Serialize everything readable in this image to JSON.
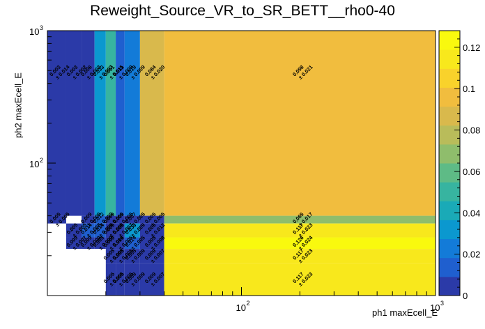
{
  "chart_data": {
    "type": "heatmap",
    "title": "Reweight_Source_VR_to_SR_BETT__rho0-40",
    "xlabel": "ph1 maxEcell_E",
    "ylabel": "ph2 maxEcell_E",
    "x_scale": "log",
    "y_scale": "log",
    "xlim": [
      10,
      1000
    ],
    "ylim": [
      10,
      1000
    ],
    "x_ticks": [
      {
        "value": 100,
        "base": "10",
        "exp": "2"
      },
      {
        "value": 1000,
        "base": "10",
        "exp": "3"
      }
    ],
    "y_ticks": [
      {
        "value": 100,
        "base": "10",
        "exp": "2"
      },
      {
        "value": 1000,
        "base": "10",
        "exp": "3"
      }
    ],
    "x_edges": [
      10,
      12.5,
      15,
      17.5,
      20,
      22.5,
      25,
      30,
      40,
      1000
    ],
    "y_edges": [
      10,
      17.5,
      22.5,
      27.5,
      35,
      40,
      1000
    ],
    "cells": [
      {
        "x": 0,
        "y": 5,
        "value": 0.003,
        "label": "0.003",
        "err": "± 0.014"
      },
      {
        "x": 1,
        "y": 5,
        "value": 0.003,
        "label": "0.003",
        "err": "± 0.002"
      },
      {
        "x": 2,
        "y": 5,
        "value": 0.006,
        "label": "0.006",
        "err": "± 0.003"
      },
      {
        "x": 3,
        "y": 5,
        "value": 0.033,
        "label": "0.033",
        "err": "± 0.007"
      },
      {
        "x": 4,
        "y": 5,
        "value": 0.051,
        "label": "0.051",
        "err": "± 0.015"
      },
      {
        "x": 5,
        "y": 5,
        "value": 0.011,
        "label": "0.011",
        "err": "± 0.009"
      },
      {
        "x": 6,
        "y": 5,
        "value": 0.019,
        "label": "0.019",
        "err": "± 0.009"
      },
      {
        "x": 7,
        "y": 5,
        "value": 0.084,
        "label": "0.084",
        "err": "± 0.020"
      },
      {
        "x": 8,
        "y": 5,
        "value": 0.098,
        "label": "0.098",
        "err": "± 0.021"
      },
      {
        "x": 0,
        "y": 4,
        "value": 0.005,
        "label": "0.005",
        "err": "± 0.005"
      },
      {
        "x": 2,
        "y": 4,
        "value": 0.009,
        "label": "0.009",
        "err": "± 0.009"
      },
      {
        "x": 3,
        "y": 4,
        "value": 0.012,
        "label": "0.012",
        "err": "± 0.033"
      },
      {
        "x": 4,
        "y": 4,
        "value": 0.009,
        "label": "0.009",
        "err": "± 0.009"
      },
      {
        "x": 5,
        "y": 4,
        "value": 0.009,
        "label": "0.009",
        "err": "± 0.005"
      },
      {
        "x": 6,
        "y": 4,
        "value": 0.007,
        "label": "0.007",
        "err": "± 0.005"
      },
      {
        "x": 7,
        "y": 4,
        "value": 0.005,
        "label": "0.005",
        "err": "± 0.005"
      },
      {
        "x": 8,
        "y": 4,
        "value": 0.065,
        "label": "0.065",
        "err": "± 0.017"
      },
      {
        "x": 1,
        "y": 3,
        "value": 0.005,
        "label": "0.005",
        "err": "± 0.005"
      },
      {
        "x": 2,
        "y": 3,
        "value": 0.014,
        "label": "0.014",
        "err": "± 0.008"
      },
      {
        "x": 3,
        "y": 3,
        "value": 0.014,
        "label": "0.014",
        "err": "± 0.009"
      },
      {
        "x": 4,
        "y": 3,
        "value": 0.009,
        "label": "0.009",
        "err": "± 0.009"
      },
      {
        "x": 5,
        "y": 3,
        "value": 0.005,
        "label": "0.005",
        "err": "± 0.007"
      },
      {
        "x": 6,
        "y": 3,
        "value": 0.033,
        "label": "0.033",
        "err": "± 0.009"
      },
      {
        "x": 7,
        "y": 3,
        "value": 0.005,
        "label": "0.005",
        "err": "± 0.012"
      },
      {
        "x": 8,
        "y": 3,
        "value": 0.117,
        "label": "0.117",
        "err": "± 0.023"
      },
      {
        "x": 1,
        "y": 2,
        "value": 0.009,
        "label": "0.009",
        "err": "± 0.007"
      },
      {
        "x": 2,
        "y": 2,
        "value": 0.009,
        "label": "0.009",
        "err": "± 0.009"
      },
      {
        "x": 3,
        "y": 2,
        "value": 0.005,
        "label": "0.005",
        "err": "± 0.009"
      },
      {
        "x": 4,
        "y": 2,
        "value": 0.009,
        "label": "0.009",
        "err": "± 0.014"
      },
      {
        "x": 5,
        "y": 2,
        "value": 0.005,
        "label": "0.005",
        "err": "± 0.005"
      },
      {
        "x": 6,
        "y": 2,
        "value": 0.014,
        "label": "0.014",
        "err": "± 0.005"
      },
      {
        "x": 7,
        "y": 2,
        "value": 0.005,
        "label": "0.005",
        "err": "± 0.008"
      },
      {
        "x": 8,
        "y": 2,
        "value": 0.126,
        "label": "0.126",
        "err": "± 0.024"
      },
      {
        "x": 4,
        "y": 1,
        "value": 0.005,
        "label": "0.005",
        "err": "± 0.005"
      },
      {
        "x": 5,
        "y": 1,
        "value": 0.005,
        "label": "0.005",
        "err": "± 0.005"
      },
      {
        "x": 6,
        "y": 1,
        "value": 0.005,
        "label": "0.005",
        "err": "± 0.009"
      },
      {
        "x": 7,
        "y": 1,
        "value": 0.009,
        "label": "0.009",
        "err": "± 0.007"
      },
      {
        "x": 8,
        "y": 1,
        "value": 0.117,
        "label": "0.117",
        "err": "± 0.023"
      },
      {
        "x": 4,
        "y": 0,
        "value": 0.005,
        "label": "0.005",
        "err": "± 0.005"
      },
      {
        "x": 5,
        "y": 0,
        "value": 0.005,
        "label": "0.005",
        "err": "± 0.005"
      },
      {
        "x": 6,
        "y": 0,
        "value": 0.009,
        "label": "0.009",
        "err": "± 0.009"
      },
      {
        "x": 7,
        "y": 0,
        "value": 0.009,
        "label": "0.009",
        "err": "± 0.007"
      },
      {
        "x": 8,
        "y": 0,
        "value": 0.117,
        "label": "0.117",
        "err": "± 0.023"
      }
    ],
    "colorbar": {
      "range": [
        0,
        0.128
      ],
      "ticks": [
        {
          "value": 0,
          "label": "0"
        },
        {
          "value": 0.02,
          "label": "0.02"
        },
        {
          "value": 0.04,
          "label": "0.04"
        },
        {
          "value": 0.06,
          "label": "0.06"
        },
        {
          "value": 0.08,
          "label": "0.08"
        },
        {
          "value": 0.1,
          "label": "0.1"
        },
        {
          "value": 0.12,
          "label": "0.12"
        }
      ],
      "colors": [
        "#2b3aa8",
        "#1f5fcf",
        "#137bd8",
        "#0b98cf",
        "#1aaab7",
        "#37b4a0",
        "#5ebb86",
        "#8fbd6c",
        "#b9bc5a",
        "#d9b94c",
        "#f1bd3e",
        "#f9d22b",
        "#f8e81c",
        "#f9f90e"
      ]
    },
    "grid": false
  }
}
